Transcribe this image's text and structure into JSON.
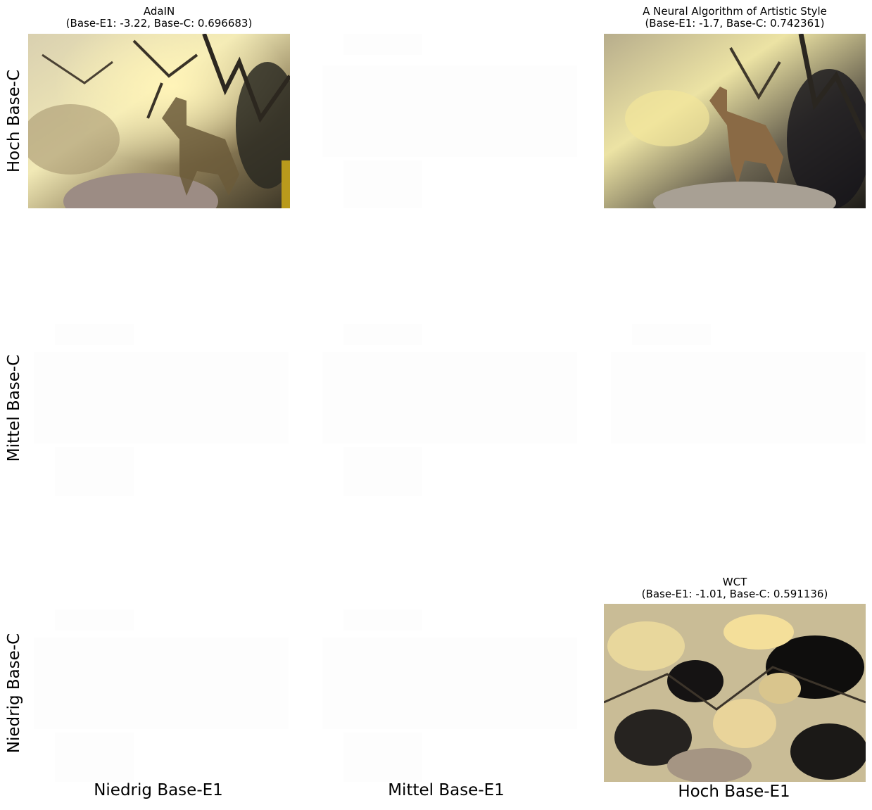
{
  "grid": {
    "row_labels": [
      "Hoch Base-C",
      "Mittel Base-C",
      "Niedrig Base-C"
    ],
    "col_labels": [
      "Niedrig Base-E1",
      "Mittel Base-E1",
      "Hoch Base-E1"
    ]
  },
  "panels": [
    {
      "cell": "Hoch Base-C / Niedrig Base-E1",
      "title": "AdaIN",
      "subtitle": "(Base-E1: -3.22, Base-C: 0.696683)",
      "image": "stylized-deer-photo"
    },
    {
      "cell": "Hoch Base-C / Hoch Base-E1",
      "title": "A Neural Algorithm of Artistic Style",
      "subtitle": "(Base-E1: -1.7, Base-C: 0.742361)",
      "image": "stylized-deer-photo"
    },
    {
      "cell": "Niedrig Base-C / Hoch Base-E1",
      "title": "WCT",
      "subtitle": "(Base-E1: -1.01, Base-C: 0.591136)",
      "image": "stylized-deer-photo"
    }
  ],
  "colors": {
    "background": "#ffffff",
    "text": "#000000",
    "placeholder": "#fdfdfd"
  }
}
